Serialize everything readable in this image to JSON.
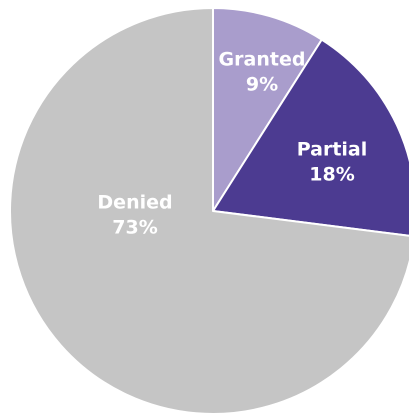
{
  "chart_data": {
    "type": "pie",
    "categories": [
      "Granted",
      "Partial",
      "Denied"
    ],
    "values": [
      9,
      18,
      73
    ],
    "value_labels": [
      "9%",
      "18%",
      "73%"
    ],
    "colors": [
      "#a99dcc",
      "#4c3b91",
      "#c5c5c5"
    ]
  }
}
